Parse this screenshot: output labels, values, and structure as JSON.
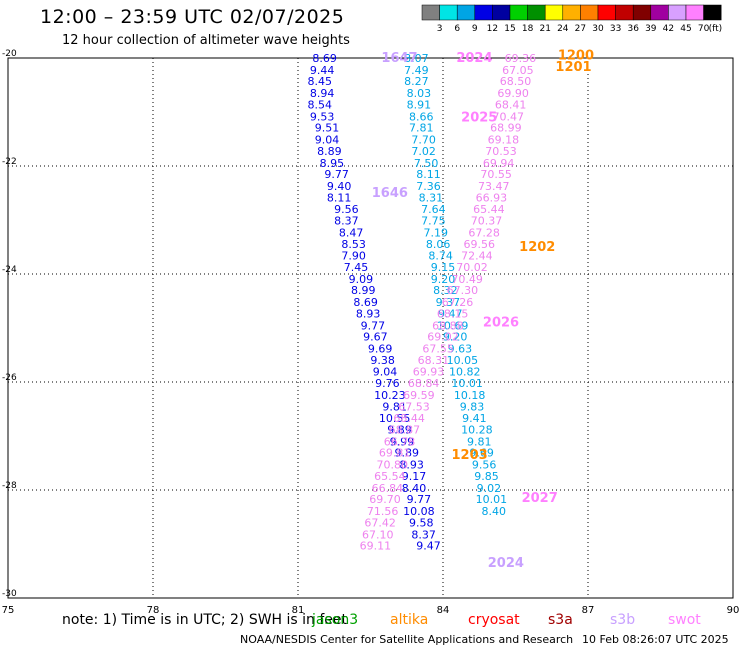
{
  "header": {
    "title": "12:00 – 23:59 UTC 02/07/2025",
    "subtitle": "12 hour collection of altimeter wave heights"
  },
  "colorbar": {
    "colors": [
      "#808080",
      "#00e5e5",
      "#00a5e5",
      "#0000e5",
      "#0000a0",
      "#00d000",
      "#009000",
      "#ffff00",
      "#ffb000",
      "#ff8000",
      "#ff0000",
      "#c00000",
      "#800000",
      "#a000a0",
      "#d8a0ff",
      "#ff80ff",
      "#000000"
    ],
    "labels": [
      "3",
      "6",
      "9",
      "12",
      "15",
      "18",
      "21",
      "24",
      "27",
      "30",
      "33",
      "36",
      "39",
      "42",
      "45",
      "70"
    ],
    "unit": "(ft)"
  },
  "footer": {
    "note": "note:  1) Time is in UTC;  2) SWH is in feet",
    "credit": "NOAA/NESDIS Center for Satellite Applications and Research",
    "timestamp": "10 Feb 08:26:07 UTC 2025",
    "satellites": [
      {
        "name": "jason3",
        "color": "#00a000"
      },
      {
        "name": "altika",
        "color": "#ff8c00"
      },
      {
        "name": "cryosat",
        "color": "#ff0000"
      },
      {
        "name": "s3a",
        "color": "#a00000"
      },
      {
        "name": "s3b",
        "color": "#c8a0ff"
      },
      {
        "name": "swot",
        "color": "#ff80ff"
      }
    ]
  },
  "chart_data": {
    "type": "scatter",
    "title": "12 hour collection of altimeter wave heights",
    "xlim": [
      75,
      90
    ],
    "ylim": [
      -30,
      -20
    ],
    "xticks": [
      "75",
      "78",
      "81",
      "84",
      "87",
      "90"
    ],
    "yticks": [
      "-20",
      "-22",
      "-24",
      "-26",
      "-28",
      "-30"
    ],
    "grid": true,
    "series": [
      {
        "name": "jason3",
        "color": "#0000e5",
        "points": [
          {
            "x": 81.55,
            "y": -20.0,
            "label": "8.69"
          },
          {
            "x": 81.5,
            "y": -20.22,
            "label": "9.44"
          },
          {
            "x": 81.45,
            "y": -20.43,
            "label": "8.45"
          },
          {
            "x": 81.5,
            "y": -20.65,
            "label": "8.94"
          },
          {
            "x": 81.45,
            "y": -20.86,
            "label": "8.54"
          },
          {
            "x": 81.5,
            "y": -21.08,
            "label": "9.53"
          },
          {
            "x": 81.6,
            "y": -21.29,
            "label": "9.51"
          },
          {
            "x": 81.6,
            "y": -21.51,
            "label": "9.04"
          },
          {
            "x": 81.65,
            "y": -21.72,
            "label": "8.89"
          },
          {
            "x": 81.7,
            "y": -21.94,
            "label": "8.95"
          },
          {
            "x": 81.8,
            "y": -22.15,
            "label": "9.77"
          },
          {
            "x": 81.85,
            "y": -22.37,
            "label": "9.40"
          },
          {
            "x": 81.85,
            "y": -22.58,
            "label": "8.11"
          },
          {
            "x": 82.0,
            "y": -22.8,
            "label": "9.56"
          },
          {
            "x": 82.0,
            "y": -23.01,
            "label": "8.37"
          },
          {
            "x": 82.1,
            "y": -23.23,
            "label": "8.47"
          },
          {
            "x": 82.15,
            "y": -23.44,
            "label": "8.53"
          },
          {
            "x": 82.15,
            "y": -23.66,
            "label": "7.90"
          },
          {
            "x": 82.2,
            "y": -23.87,
            "label": "7.45"
          },
          {
            "x": 82.3,
            "y": -24.09,
            "label": "9.09"
          },
          {
            "x": 82.35,
            "y": -24.3,
            "label": "8.99"
          },
          {
            "x": 82.4,
            "y": -24.52,
            "label": "8.69"
          },
          {
            "x": 82.45,
            "y": -24.73,
            "label": "8.93"
          },
          {
            "x": 82.55,
            "y": -24.95,
            "label": "9.77"
          },
          {
            "x": 82.6,
            "y": -25.16,
            "label": "9.67"
          },
          {
            "x": 82.7,
            "y": -25.38,
            "label": "9.69"
          },
          {
            "x": 82.75,
            "y": -25.59,
            "label": "9.38"
          },
          {
            "x": 82.8,
            "y": -25.81,
            "label": "9.04"
          },
          {
            "x": 82.85,
            "y": -26.02,
            "label": "9.76"
          },
          {
            "x": 82.9,
            "y": -26.24,
            "label": "10.23"
          },
          {
            "x": 83.0,
            "y": -26.45,
            "label": "9.81"
          },
          {
            "x": 83.0,
            "y": -26.67,
            "label": "10.55"
          },
          {
            "x": 83.1,
            "y": -26.88,
            "label": "9.89"
          },
          {
            "x": 83.15,
            "y": -27.1,
            "label": "9.99"
          },
          {
            "x": 83.25,
            "y": -27.31,
            "label": "9.89"
          },
          {
            "x": 83.35,
            "y": -27.53,
            "label": "8.93"
          },
          {
            "x": 83.4,
            "y": -27.74,
            "label": "9.17"
          },
          {
            "x": 83.4,
            "y": -27.96,
            "label": "8.40"
          },
          {
            "x": 83.5,
            "y": -28.17,
            "label": "9.77"
          },
          {
            "x": 83.5,
            "y": -28.39,
            "label": "10.08"
          },
          {
            "x": 83.55,
            "y": -28.6,
            "label": "9.58"
          },
          {
            "x": 83.6,
            "y": -28.82,
            "label": "8.37"
          },
          {
            "x": 83.7,
            "y": -29.03,
            "label": "9.47"
          }
        ]
      },
      {
        "name": "cyan-track",
        "color": "#00a5e5",
        "points": [
          {
            "x": 83.45,
            "y": -20.0,
            "label": "8.07"
          },
          {
            "x": 83.45,
            "y": -20.22,
            "label": "7.49"
          },
          {
            "x": 83.45,
            "y": -20.43,
            "label": "8.27"
          },
          {
            "x": 83.5,
            "y": -20.65,
            "label": "8.03"
          },
          {
            "x": 83.5,
            "y": -20.86,
            "label": "8.91"
          },
          {
            "x": 83.55,
            "y": -21.08,
            "label": "8.66"
          },
          {
            "x": 83.55,
            "y": -21.29,
            "label": "7.81"
          },
          {
            "x": 83.6,
            "y": -21.51,
            "label": "7.70"
          },
          {
            "x": 83.6,
            "y": -21.72,
            "label": "7.02"
          },
          {
            "x": 83.65,
            "y": -21.94,
            "label": "7.50"
          },
          {
            "x": 83.7,
            "y": -22.15,
            "label": "8.11"
          },
          {
            "x": 83.7,
            "y": -22.37,
            "label": "7.36"
          },
          {
            "x": 83.75,
            "y": -22.58,
            "label": "8.31"
          },
          {
            "x": 83.8,
            "y": -22.8,
            "label": "7.64"
          },
          {
            "x": 83.8,
            "y": -23.01,
            "label": "7.75"
          },
          {
            "x": 83.85,
            "y": -23.23,
            "label": "7.19"
          },
          {
            "x": 83.9,
            "y": -23.44,
            "label": "8.06"
          },
          {
            "x": 83.95,
            "y": -23.66,
            "label": "8.74"
          },
          {
            "x": 84.0,
            "y": -23.87,
            "label": "9.15"
          },
          {
            "x": 84.0,
            "y": -24.09,
            "label": "9.20"
          },
          {
            "x": 84.05,
            "y": -24.3,
            "label": "8.32"
          },
          {
            "x": 84.1,
            "y": -24.52,
            "label": "9.37"
          },
          {
            "x": 84.15,
            "y": -24.73,
            "label": "9.47"
          },
          {
            "x": 84.2,
            "y": -24.95,
            "label": "10.69"
          },
          {
            "x": 84.25,
            "y": -25.16,
            "label": "9.20"
          },
          {
            "x": 84.35,
            "y": -25.38,
            "label": "9.63"
          },
          {
            "x": 84.4,
            "y": -25.59,
            "label": "10.05"
          },
          {
            "x": 84.45,
            "y": -25.81,
            "label": "10.82"
          },
          {
            "x": 84.5,
            "y": -26.02,
            "label": "10.01"
          },
          {
            "x": 84.55,
            "y": -26.24,
            "label": "10.18"
          },
          {
            "x": 84.6,
            "y": -26.45,
            "label": "9.83"
          },
          {
            "x": 84.65,
            "y": -26.67,
            "label": "9.41"
          },
          {
            "x": 84.7,
            "y": -26.88,
            "label": "10.28"
          },
          {
            "x": 84.75,
            "y": -27.1,
            "label": "9.81"
          },
          {
            "x": 84.8,
            "y": -27.31,
            "label": "9.69"
          },
          {
            "x": 84.85,
            "y": -27.53,
            "label": "9.56"
          },
          {
            "x": 84.9,
            "y": -27.74,
            "label": "9.85"
          },
          {
            "x": 84.95,
            "y": -27.96,
            "label": "9.02"
          },
          {
            "x": 85.0,
            "y": -28.17,
            "label": "10.01"
          },
          {
            "x": 85.05,
            "y": -28.39,
            "label": "8.40"
          }
        ]
      },
      {
        "name": "swot",
        "color": "#ee82ee",
        "points": [
          {
            "x": 85.6,
            "y": -20.0,
            "label": "69.36"
          },
          {
            "x": 85.55,
            "y": -20.22,
            "label": "67.05"
          },
          {
            "x": 85.5,
            "y": -20.43,
            "label": "68.50"
          },
          {
            "x": 85.45,
            "y": -20.65,
            "label": "69.90"
          },
          {
            "x": 85.4,
            "y": -20.86,
            "label": "68.41"
          },
          {
            "x": 85.35,
            "y": -21.08,
            "label": "70.47"
          },
          {
            "x": 85.3,
            "y": -21.29,
            "label": "68.99"
          },
          {
            "x": 85.25,
            "y": -21.51,
            "label": "69.18"
          },
          {
            "x": 85.2,
            "y": -21.72,
            "label": "70.53"
          },
          {
            "x": 85.15,
            "y": -21.94,
            "label": "69.94"
          },
          {
            "x": 85.1,
            "y": -22.15,
            "label": "70.55"
          },
          {
            "x": 85.05,
            "y": -22.37,
            "label": "73.47"
          },
          {
            "x": 85.0,
            "y": -22.58,
            "label": "66.93"
          },
          {
            "x": 84.95,
            "y": -22.8,
            "label": "65.44"
          },
          {
            "x": 84.9,
            "y": -23.01,
            "label": "70.37"
          },
          {
            "x": 84.85,
            "y": -23.23,
            "label": "67.28"
          },
          {
            "x": 84.75,
            "y": -23.44,
            "label": "69.56"
          },
          {
            "x": 84.7,
            "y": -23.66,
            "label": "72.44"
          },
          {
            "x": 84.6,
            "y": -23.87,
            "label": "70.02"
          },
          {
            "x": 84.5,
            "y": -24.09,
            "label": "70.49"
          },
          {
            "x": 84.4,
            "y": -24.3,
            "label": "67.30"
          },
          {
            "x": 84.3,
            "y": -24.52,
            "label": "67.26"
          },
          {
            "x": 84.2,
            "y": -24.73,
            "label": "68.15"
          },
          {
            "x": 84.1,
            "y": -24.95,
            "label": "68.88"
          },
          {
            "x": 84.0,
            "y": -25.16,
            "label": "69.02"
          },
          {
            "x": 83.9,
            "y": -25.38,
            "label": "67.55"
          },
          {
            "x": 83.8,
            "y": -25.59,
            "label": "68.31"
          },
          {
            "x": 83.7,
            "y": -25.81,
            "label": "69.93"
          },
          {
            "x": 83.6,
            "y": -26.02,
            "label": "68.84"
          },
          {
            "x": 83.5,
            "y": -26.24,
            "label": "69.59"
          },
          {
            "x": 83.4,
            "y": -26.45,
            "label": "67.53"
          },
          {
            "x": 83.3,
            "y": -26.67,
            "label": "68.44"
          },
          {
            "x": 83.2,
            "y": -26.88,
            "label": "68.87"
          },
          {
            "x": 83.1,
            "y": -27.1,
            "label": "66.78"
          },
          {
            "x": 83.0,
            "y": -27.31,
            "label": "69.81"
          },
          {
            "x": 82.95,
            "y": -27.53,
            "label": "70.80"
          },
          {
            "x": 82.9,
            "y": -27.74,
            "label": "65.54"
          },
          {
            "x": 82.85,
            "y": -27.96,
            "label": "66.84"
          },
          {
            "x": 82.8,
            "y": -28.17,
            "label": "69.70"
          },
          {
            "x": 82.75,
            "y": -28.39,
            "label": "71.56"
          },
          {
            "x": 82.7,
            "y": -28.6,
            "label": "67.42"
          },
          {
            "x": 82.65,
            "y": -28.82,
            "label": "67.10"
          },
          {
            "x": 82.6,
            "y": -29.03,
            "label": "69.11"
          }
        ]
      }
    ],
    "time_labels": [
      {
        "x": 83.1,
        "y": -20.0,
        "label": "1647",
        "color": "#c8a0ff"
      },
      {
        "x": 84.65,
        "y": -20.0,
        "label": "2024",
        "color": "#ff80ff"
      },
      {
        "x": 86.75,
        "y": -19.95,
        "label": "1200",
        "color": "#ff8c00"
      },
      {
        "x": 86.7,
        "y": -20.17,
        "label": "1201",
        "color": "#ff8c00"
      },
      {
        "x": 84.75,
        "y": -21.1,
        "label": "2025",
        "color": "#ff80ff"
      },
      {
        "x": 82.9,
        "y": -22.5,
        "label": "1646",
        "color": "#c8a0ff"
      },
      {
        "x": 85.95,
        "y": -23.5,
        "label": "1202",
        "color": "#ff8c00"
      },
      {
        "x": 85.2,
        "y": -24.9,
        "label": "2026",
        "color": "#ff80ff"
      },
      {
        "x": 84.55,
        "y": -27.35,
        "label": "1203",
        "color": "#ff8c00"
      },
      {
        "x": 86.0,
        "y": -28.15,
        "label": "2027",
        "color": "#ff80ff"
      },
      {
        "x": 85.3,
        "y": -29.35,
        "label": "2024",
        "color": "#c8a0ff"
      }
    ]
  }
}
